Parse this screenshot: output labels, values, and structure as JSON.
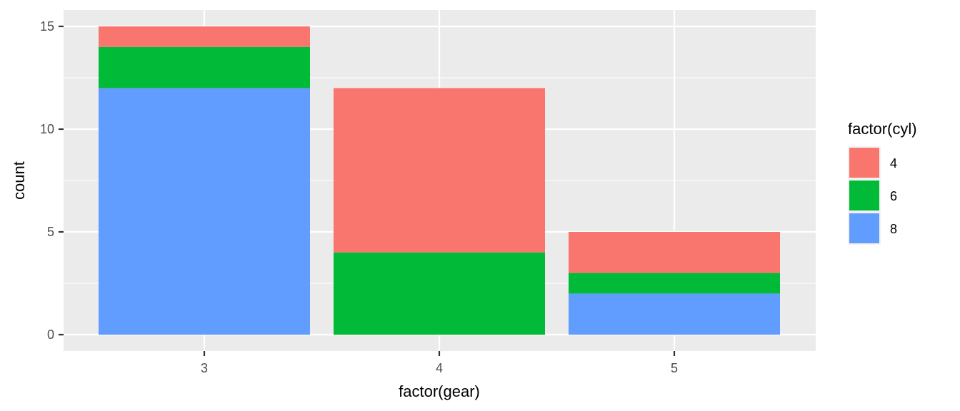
{
  "chart_data": {
    "type": "bar",
    "stacked": true,
    "categories": [
      "3",
      "4",
      "5"
    ],
    "series": [
      {
        "name": "4",
        "values": [
          1,
          8,
          2
        ],
        "color": "#F8766D"
      },
      {
        "name": "6",
        "values": [
          2,
          4,
          1
        ],
        "color": "#00BA38"
      },
      {
        "name": "8",
        "values": [
          12,
          0,
          2
        ],
        "color": "#619CFF"
      }
    ],
    "stack_order_bottom_to_top": [
      "8",
      "6",
      "4"
    ],
    "xlabel": "factor(gear)",
    "ylabel": "count",
    "ylim": [
      0,
      15
    ],
    "yticks": [
      0,
      5,
      10,
      15
    ],
    "grid": true,
    "legend": {
      "title": "factor(cyl)",
      "placement": "right",
      "entries": [
        "4",
        "6",
        "8"
      ]
    },
    "panel_background": "#EBEBEB",
    "grid_color": "#FFFFFF"
  }
}
